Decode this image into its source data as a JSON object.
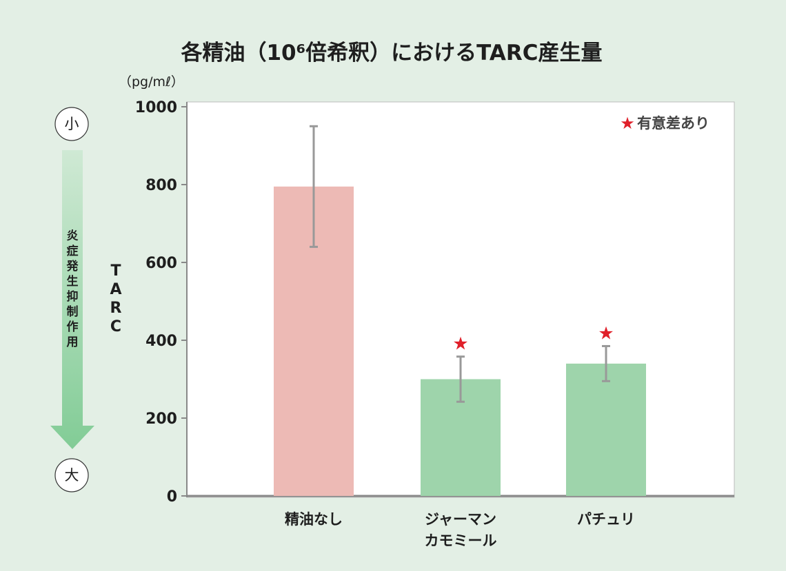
{
  "chart_data": {
    "type": "bar",
    "title": "各精油（10⁶倍希釈）におけるTARC産生量",
    "ylabel": "TARC",
    "unit": "（pg/mℓ）",
    "ylim": [
      0,
      1000
    ],
    "yticks": [
      0,
      200,
      400,
      600,
      800,
      1000
    ],
    "categories": [
      {
        "lines": [
          "精油なし"
        ],
        "value": 795,
        "error": 155,
        "significant": false,
        "color": "#edbab5"
      },
      {
        "lines": [
          "ジャーマン",
          "カモミール"
        ],
        "value": 300,
        "error": 58,
        "significant": true,
        "color": "#9ed4ab"
      },
      {
        "lines": [
          "パチュリ"
        ],
        "value": 340,
        "error": 45,
        "significant": true,
        "color": "#9ed4ab"
      }
    ],
    "legend_note": "有意差あり",
    "legend_mark": "★",
    "legend_placement": "top-right",
    "significance_color": "#e0202a",
    "errorbar_color": "#999999",
    "grid": false
  },
  "side_indicator": {
    "top_label": "小",
    "bottom_label": "大",
    "text": "炎症発生抑制作用",
    "color": "#7ccb92"
  }
}
